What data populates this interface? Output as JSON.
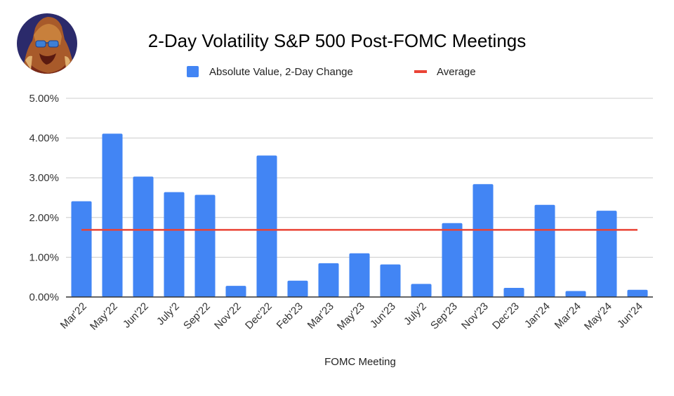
{
  "chart_data": {
    "type": "bar",
    "title": "2-Day Volatility S&P 500 Post-FOMC Meetings",
    "xlabel": "FOMC Meeting",
    "ylabel": "",
    "ylim": [
      0,
      5
    ],
    "y_ticks": [
      "0.00%",
      "1.00%",
      "2.00%",
      "3.00%",
      "4.00%",
      "5.00%"
    ],
    "y_tick_values": [
      0,
      1,
      2,
      3,
      4,
      5
    ],
    "grid": true,
    "legend_position": "top",
    "categories": [
      "Mar'22",
      "May'22",
      "Jun'22",
      "July'2",
      "Sep'22",
      "Nov'22",
      "Dec'22",
      "Feb'23",
      "Mar'23",
      "May'23",
      "Jun'23",
      "July'2",
      "Sep'23",
      "Nov'23",
      "Dec'23",
      "Jan'24",
      "Mar'24",
      "May'24",
      "Jun'24"
    ],
    "series": [
      {
        "name": "Absolute Value, 2-Day Change",
        "kind": "bar",
        "color": "#4285f4",
        "values": [
          2.41,
          4.11,
          3.03,
          2.64,
          2.57,
          0.28,
          3.56,
          0.41,
          0.85,
          1.1,
          0.82,
          0.33,
          1.86,
          2.84,
          0.23,
          2.32,
          0.15,
          2.17,
          0.18
        ]
      },
      {
        "name": "Average",
        "kind": "line",
        "color": "#ea4335",
        "value": 1.69
      }
    ]
  },
  "logo": {
    "icon": "gorilla-sunglasses-avatar",
    "bg_color": "#2b2a6b"
  }
}
